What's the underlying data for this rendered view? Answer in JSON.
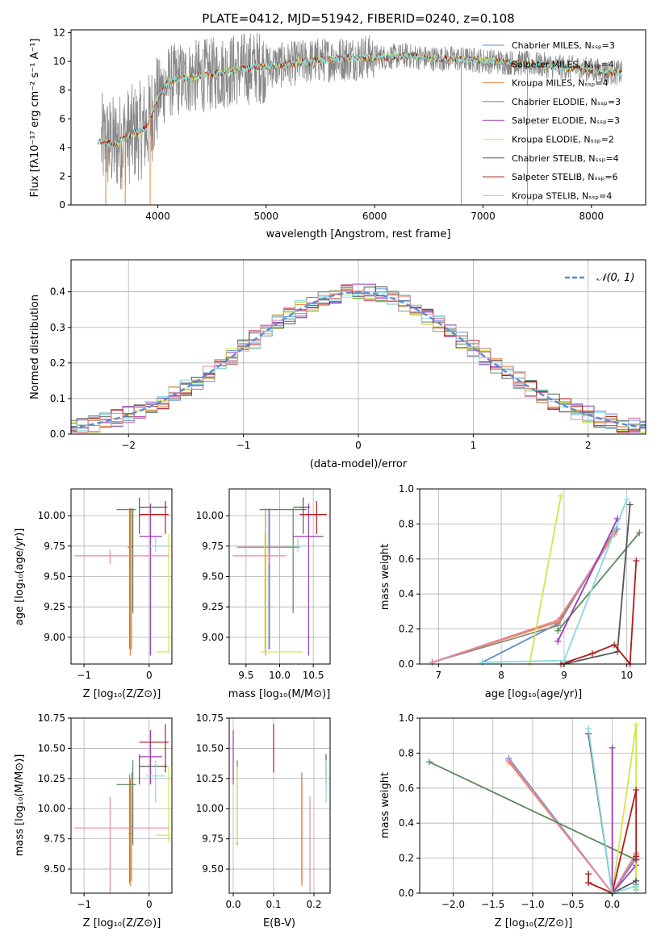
{
  "colors": {
    "chabrier_miles": "#5b8bd4",
    "salpeter_miles": "#8c8c8c",
    "kroupa_miles": "#e8823a",
    "chabrier_elodie": "#5a8a5a",
    "salpeter_elodie": "#a038b8",
    "kroupa_elodie": "#cde848",
    "chabrier_stelib": "#555555",
    "salpeter_stelib": "#b01c1c",
    "kroupa_stelib": "#88dadf",
    "pink": "#e38aa8",
    "normal_curve": "#5b8bd4"
  },
  "chart_data": [
    {
      "id": "spectrum",
      "type": "line",
      "title": "PLATE=0412, MJD=51942, FIBERID=0240, z=0.108",
      "xlabel": "wavelength [Angstrom, rest frame]",
      "ylabel": "Flux [fλ10⁻¹⁷ erg cm⁻² s⁻¹ A⁻¹]",
      "xlim": [
        3200,
        8500
      ],
      "ylim": [
        0,
        12.2
      ],
      "xticks": [
        "4000",
        "5000",
        "6000",
        "7000",
        "8000"
      ],
      "xtick_values": [
        4000,
        5000,
        6000,
        7000,
        8000
      ],
      "yticks": [
        "0",
        "2",
        "4",
        "6",
        "8",
        "10",
        "12"
      ],
      "ytick_values": [
        0,
        2,
        4,
        6,
        8,
        10,
        12
      ],
      "legend": [
        "Chabrier MILES, Nₛₛₚ=3",
        "Salpeter MILES, Nₛₛₚ=4",
        "Kroupa MILES, Nₛₛₚ=4",
        "Chabrier ELODIE, Nₛₛₚ=3",
        "Salpeter ELODIE, Nₛₛₚ=3",
        "Kroupa ELODIE, Nₛₛₚ=2",
        "Chabrier STELIB, Nₛₛₚ=4",
        "Salpeter STELIB, Nₛₛₚ=6",
        "Kroupa STELIB, Nₛₛₚ=4"
      ],
      "legend_placement": "right",
      "continuum_wavelength": [
        3450,
        3600,
        3750,
        3900,
        4000,
        4100,
        4300,
        4500,
        4700,
        4900,
        5100,
        5300,
        5500,
        5700,
        5900,
        6100,
        6300,
        6500,
        6700,
        6900,
        7100,
        7300,
        7500,
        7700,
        7900,
        8100,
        8280
      ],
      "continuum_flux": [
        4.4,
        4.2,
        4.9,
        5.4,
        7.5,
        8.6,
        8.9,
        9.1,
        9.4,
        9.6,
        9.7,
        9.9,
        10.1,
        10.2,
        10.3,
        10.3,
        10.4,
        10.2,
        10.2,
        10.1,
        10.0,
        9.9,
        9.8,
        9.6,
        9.5,
        9.3,
        9.2
      ]
    },
    {
      "id": "residuals",
      "type": "histogram",
      "xlabel": "(data-model)/error",
      "ylabel": "Normed distribution",
      "xlim": [
        -2.5,
        2.5
      ],
      "ylim": [
        0,
        0.49
      ],
      "xticks": [
        "−2",
        "−1",
        "0",
        "1",
        "2"
      ],
      "xtick_values": [
        -2,
        -1,
        0,
        1,
        2
      ],
      "yticks": [
        "0.0",
        "0.1",
        "0.2",
        "0.3",
        "0.4"
      ],
      "ytick_values": [
        0,
        0.1,
        0.2,
        0.3,
        0.4
      ],
      "legend": [
        "𝒩(0, 1)"
      ],
      "legend_placement": "top-right",
      "grid": true,
      "bin_width": 0.1
    },
    {
      "id": "age_vs_Z",
      "type": "scatter",
      "xlabel": "Z [log₁₀(Z/Z⊙)]",
      "ylabel": "age  [log₁₀(age/yr)]",
      "xlim": [
        -1.2,
        0.35
      ],
      "ylim": [
        8.78,
        10.22
      ],
      "xticks": [
        "−1",
        "0"
      ],
      "xtick_values": [
        -1,
        0
      ],
      "yticks": [
        "9.00",
        "9.25",
        "9.50",
        "9.75",
        "10.00"
      ],
      "ytick_values": [
        9.0,
        9.25,
        9.5,
        9.75,
        10.0
      ],
      "grid": true
    },
    {
      "id": "age_vs_mass",
      "type": "scatter",
      "xlabel": "mass [log₁₀(M/M⊙)]",
      "ylabel": "",
      "xlim": [
        9.25,
        10.75
      ],
      "ylim": [
        8.78,
        10.22
      ],
      "xticks": [
        "9.5",
        "10.0",
        "10.5"
      ],
      "xtick_values": [
        9.5,
        10.0,
        10.5
      ],
      "yticks": [
        "9.00",
        "9.25",
        "9.50",
        "9.75",
        "10.00"
      ],
      "ytick_values": [
        9.0,
        9.25,
        9.5,
        9.75,
        10.0
      ],
      "grid": true
    },
    {
      "id": "weight_vs_age",
      "type": "line",
      "xlabel": "age  [log₁₀(age/yr)]",
      "ylabel": "mass weight",
      "xlim": [
        6.7,
        10.3
      ],
      "ylim": [
        0,
        1.0
      ],
      "xticks": [
        "7",
        "8",
        "9",
        "10"
      ],
      "xtick_values": [
        7,
        8,
        9,
        10
      ],
      "yticks": [
        "0.0",
        "0.2",
        "0.4",
        "0.6",
        "0.8",
        "1.0"
      ],
      "ytick_values": [
        0,
        0.2,
        0.4,
        0.6,
        0.8,
        1.0
      ],
      "grid": true
    },
    {
      "id": "mass_vs_Z",
      "type": "scatter",
      "xlabel": "Z [log₁₀(Z/Z⊙)]",
      "ylabel": "mass [log₁₀(M/M⊙)]",
      "xlim": [
        -1.2,
        0.35
      ],
      "ylim": [
        9.3,
        10.75
      ],
      "xticks": [
        "−1",
        "0"
      ],
      "xtick_values": [
        -1,
        0
      ],
      "yticks": [
        "9.50",
        "9.75",
        "10.00",
        "10.25",
        "10.50",
        "10.75"
      ],
      "ytick_values": [
        9.5,
        9.75,
        10.0,
        10.25,
        10.5,
        10.75
      ],
      "grid": true
    },
    {
      "id": "mass_vs_ebv",
      "type": "scatter",
      "xlabel": "E(B-V)",
      "ylabel": "",
      "xlim": [
        -0.01,
        0.24
      ],
      "ylim": [
        9.3,
        10.75
      ],
      "xticks": [
        "0.0",
        "0.1",
        "0.2"
      ],
      "xtick_values": [
        0.0,
        0.1,
        0.2
      ],
      "yticks": [
        "9.50",
        "9.75",
        "10.00",
        "10.25",
        "10.50",
        "10.75"
      ],
      "ytick_values": [
        9.5,
        9.75,
        10.0,
        10.25,
        10.5,
        10.75
      ],
      "grid": true
    },
    {
      "id": "weight_vs_Z",
      "type": "line",
      "xlabel": "Z [log₁₀(Z/Z⊙)]",
      "ylabel": "mass weight",
      "xlim": [
        -2.42,
        0.42
      ],
      "ylim": [
        0,
        1.0
      ],
      "xticks": [
        "−2.0",
        "−1.5",
        "−1.0",
        "−0.5",
        "0.0"
      ],
      "xtick_values": [
        -2.0,
        -1.5,
        -1.0,
        -0.5,
        0.0
      ],
      "yticks": [
        "0.0",
        "0.2",
        "0.4",
        "0.6",
        "0.8",
        "1.0"
      ],
      "ytick_values": [
        0,
        0.2,
        0.4,
        0.6,
        0.8,
        1.0
      ],
      "grid": true
    }
  ],
  "fits": [
    {
      "key": "chabrier_miles",
      "age": 9.74,
      "age_lo": 8.9,
      "age_hi": 10.06,
      "Z": -0.3,
      "Z_lo": -0.33,
      "Z_hi": -0.27,
      "mass": 9.84,
      "mass_lo": 9.38,
      "mass_hi": 10.28,
      "ebv": 0.17,
      "ebv_err": 0.05
    },
    {
      "key": "salpeter_miles",
      "age": 9.74,
      "age_lo": 8.9,
      "age_hi": 10.06,
      "Z": -0.27,
      "Z_lo": -0.3,
      "Z_hi": -0.25,
      "mass": 9.85,
      "mass_lo": 9.4,
      "mass_hi": 10.3,
      "ebv": 0.17,
      "ebv_err": 0.05
    },
    {
      "key": "kroupa_miles",
      "age": 9.74,
      "age_lo": 8.85,
      "age_hi": 10.06,
      "Z": -0.29,
      "Z_lo": -0.32,
      "Z_hi": -0.26,
      "mass": 9.79,
      "mass_lo": 9.36,
      "mass_hi": 10.25,
      "ebv": 0.17,
      "ebv_err": 0.05
    },
    {
      "key": "chabrier_elodie",
      "age": 10.05,
      "age_lo": 9.2,
      "age_hi": 10.06,
      "Z": -0.25,
      "Z_lo": -0.5,
      "Z_hi": -0.2,
      "mass": 10.2,
      "mass_lo": 9.7,
      "mass_hi": 10.4,
      "ebv": 0.01,
      "ebv_err": 0.01
    },
    {
      "key": "salpeter_elodie",
      "age": 9.83,
      "age_lo": 8.85,
      "age_hi": 10.1,
      "Z": 0.02,
      "Z_lo": -0.15,
      "Z_hi": 0.2,
      "mass": 10.43,
      "mass_lo": 10.2,
      "mass_hi": 10.65,
      "ebv": 0.0,
      "ebv_err": 0.02
    },
    {
      "key": "kroupa_elodie",
      "age": 8.88,
      "age_lo": 8.88,
      "age_hi": 9.85,
      "Z": 0.3,
      "Z_lo": 0.1,
      "Z_hi": 0.32,
      "mass": 9.78,
      "mass_lo": 9.72,
      "mass_hi": 10.35,
      "ebv": 0.01,
      "ebv_err": 0.03
    },
    {
      "key": "chabrier_stelib",
      "age": 10.07,
      "age_lo": 9.85,
      "age_hi": 10.15,
      "Z": -0.15,
      "Z_lo": -0.15,
      "Z_hi": 0.28,
      "mass": 10.35,
      "mass_lo": 10.2,
      "mass_hi": 10.45,
      "ebv": 0.23,
      "ebv_err": 0.05
    },
    {
      "key": "salpeter_stelib",
      "age": 10.01,
      "age_lo": 9.85,
      "age_hi": 10.12,
      "Z": 0.25,
      "Z_lo": -0.15,
      "Z_hi": 0.3,
      "mass": 10.55,
      "mass_lo": 10.3,
      "mass_hi": 10.7,
      "ebv": 0.1,
      "ebv_err": 0.07
    },
    {
      "key": "kroupa_stelib",
      "age": 9.75,
      "age_lo": 9.7,
      "age_hi": 9.82,
      "Z": 0.1,
      "Z_lo": -0.05,
      "Z_hi": 0.25,
      "mass": 10.27,
      "mass_lo": 10.05,
      "mass_hi": 10.4,
      "ebv": 0.23,
      "ebv_err": 0.05
    },
    {
      "key": "pink",
      "age": 9.67,
      "age_lo": 9.6,
      "age_hi": 9.72,
      "Z": -0.6,
      "Z_lo": -1.15,
      "Z_hi": 0.3,
      "mass": 9.84,
      "mass_lo": 9.3,
      "mass_hi": 10.1,
      "ebv": 0.19,
      "ebv_err": 0.1
    }
  ],
  "weight_age_series": [
    {
      "key": "chabrier_miles",
      "age": [
        7.7,
        8.9,
        9.85
      ],
      "weight": [
        0.01,
        0.23,
        0.77
      ]
    },
    {
      "key": "salpeter_miles",
      "age": [
        6.9,
        8.9,
        9.8
      ],
      "weight": [
        0.01,
        0.22,
        0.76
      ]
    },
    {
      "key": "kroupa_miles",
      "age": [
        6.9,
        8.9,
        9.8
      ],
      "weight": [
        0.01,
        0.24,
        0.75
      ]
    },
    {
      "key": "pink",
      "age": [
        6.9,
        8.9,
        9.8
      ],
      "weight": [
        0.01,
        0.25,
        0.74
      ]
    },
    {
      "key": "chabrier_elodie",
      "age": [
        8.9,
        10.2
      ],
      "weight": [
        0.19,
        0.75
      ]
    },
    {
      "key": "salpeter_elodie",
      "age": [
        8.9,
        9.85
      ],
      "weight": [
        0.13,
        0.83
      ]
    },
    {
      "key": "kroupa_elodie",
      "age": [
        8.45,
        8.95
      ],
      "weight": [
        0.0,
        0.96
      ]
    },
    {
      "key": "chabrier_stelib",
      "age": [
        9.0,
        9.85,
        10.05
      ],
      "weight": [
        0.0,
        0.07,
        0.91
      ]
    },
    {
      "key": "salpeter_stelib",
      "age": [
        8.95,
        9.45,
        9.8,
        10.05,
        10.15
      ],
      "weight": [
        0.0,
        0.06,
        0.11,
        0.0,
        0.59
      ]
    },
    {
      "key": "kroupa_stelib",
      "age": [
        7.7,
        9.0,
        10.0
      ],
      "weight": [
        0.01,
        0.02,
        0.94
      ]
    }
  ],
  "weight_Z_series": [
    {
      "key": "chabrier_miles",
      "Z": [
        -1.3,
        0.0,
        0.3
      ],
      "weight": [
        0.77,
        0.0,
        0.2
      ]
    },
    {
      "key": "kroupa_miles",
      "Z": [
        -1.3,
        0.0,
        0.3
      ],
      "weight": [
        0.75,
        0.0,
        0.22
      ]
    },
    {
      "key": "pink",
      "Z": [
        -1.3,
        0.0,
        0.3
      ],
      "weight": [
        0.76,
        0.0,
        0.23
      ]
    },
    {
      "key": "chabrier_elodie",
      "Z": [
        -2.3,
        0.3,
        0.3
      ],
      "weight": [
        0.75,
        0.19,
        0.05
      ]
    },
    {
      "key": "salpeter_elodie",
      "Z": [
        0.0,
        0.0,
        0.3
      ],
      "weight": [
        0.83,
        0.0,
        0.16
      ]
    },
    {
      "key": "kroupa_elodie",
      "Z": [
        0.0,
        0.3,
        0.3
      ],
      "weight": [
        0.0,
        0.96,
        0.03
      ]
    },
    {
      "key": "chabrier_stelib",
      "Z": [
        -0.3,
        0.0,
        0.3,
        0.3
      ],
      "weight": [
        0.91,
        0.0,
        0.07,
        0.02
      ]
    },
    {
      "key": "salpeter_stelib",
      "Z": [
        -0.3,
        -0.3,
        0.0,
        0.3,
        0.3,
        0.3
      ],
      "weight": [
        0.11,
        0.06,
        0.0,
        0.59,
        0.21,
        0.19
      ]
    },
    {
      "key": "kroupa_stelib",
      "Z": [
        -0.3,
        0.0,
        0.3,
        0.3
      ],
      "weight": [
        0.94,
        0.0,
        0.04,
        0.02
      ]
    }
  ]
}
